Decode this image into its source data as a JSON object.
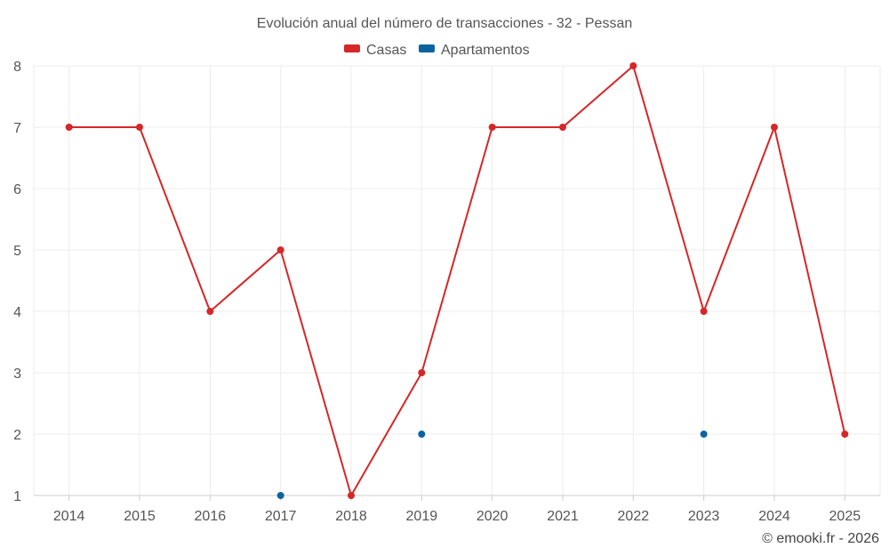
{
  "chart_data": {
    "type": "line",
    "title": "Evolución anual del número de transacciones - 32 - Pessan",
    "categories": [
      "2014",
      "2015",
      "2016",
      "2017",
      "2018",
      "2019",
      "2020",
      "2021",
      "2022",
      "2023",
      "2024",
      "2025"
    ],
    "ylim": [
      1,
      8
    ],
    "yticks": [
      1,
      2,
      3,
      4,
      5,
      6,
      7,
      8
    ],
    "grid": true,
    "legend_position": "top-center",
    "series": [
      {
        "name": "Casas",
        "color": "#d62728",
        "line": true,
        "values": [
          7,
          7,
          4,
          5,
          1,
          3,
          7,
          7,
          8,
          4,
          7,
          2
        ]
      },
      {
        "name": "Apartamentos",
        "color": "#0b64a0",
        "line": false,
        "values": [
          null,
          null,
          null,
          1,
          null,
          2,
          null,
          null,
          null,
          2,
          null,
          null
        ]
      }
    ]
  },
  "credit": "© emooki.fr - 2026"
}
